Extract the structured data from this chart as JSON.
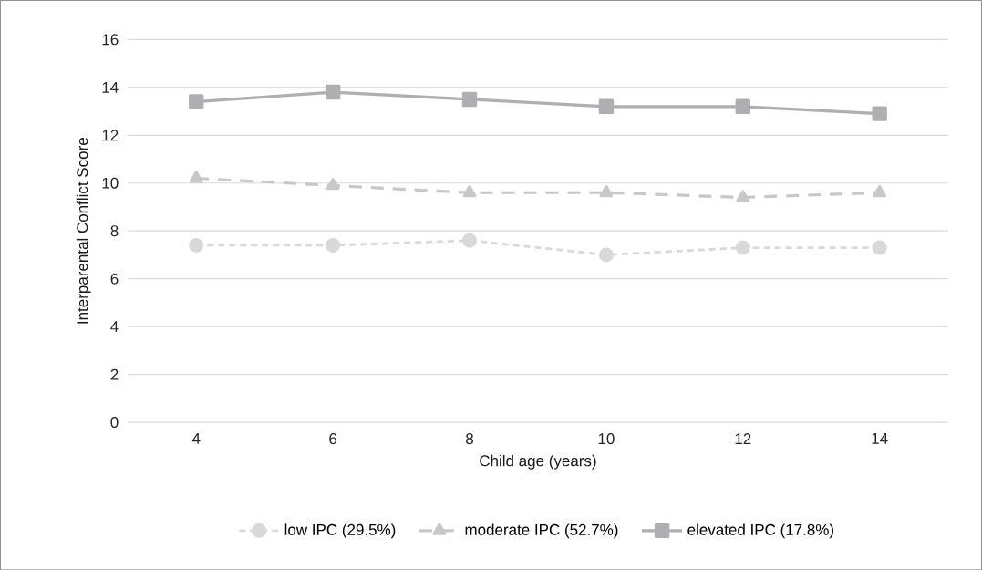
{
  "chart_data": {
    "type": "line",
    "xlabel": "Child age (years)",
    "ylabel": "Interparental Conflict Score",
    "categories": [
      "4",
      "6",
      "8",
      "10",
      "12",
      "14"
    ],
    "ylim": [
      0,
      16
    ],
    "yticks": [
      0,
      2,
      4,
      6,
      8,
      10,
      12,
      14,
      16
    ],
    "grid": "y",
    "legend": "bottom",
    "series": [
      {
        "name": "low IPC (29.5%)",
        "color": "#d9d9d9",
        "marker": "circle",
        "line_style": "dotted",
        "values": [
          7.4,
          7.4,
          7.6,
          7.0,
          7.3,
          7.3
        ]
      },
      {
        "name": "moderate IPC (52.7%)",
        "color": "#c8c8c8",
        "marker": "triangle",
        "line_style": "dashed",
        "values": [
          10.2,
          9.9,
          9.6,
          9.6,
          9.4,
          9.6
        ]
      },
      {
        "name": "elevated IPC (17.8%)",
        "color": "#afafb3",
        "marker": "square",
        "line_style": "solid",
        "values": [
          13.4,
          13.8,
          13.5,
          13.2,
          13.2,
          12.9
        ]
      }
    ]
  }
}
